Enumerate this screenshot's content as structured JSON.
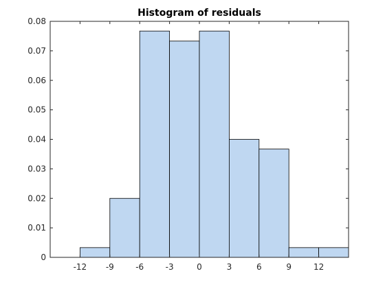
{
  "chart_data": {
    "type": "bar",
    "title": "Histogram of residuals",
    "xlabel": "",
    "ylabel": "",
    "bin_edges": [
      -15,
      -12,
      -9,
      -6,
      -3,
      0,
      3,
      6,
      9,
      12,
      15
    ],
    "values": [
      0,
      0.0033,
      0.02,
      0.0767,
      0.0733,
      0.0767,
      0.04,
      0.0367,
      0.0033,
      0.0033
    ],
    "xlim": [
      -15,
      15
    ],
    "ylim": [
      0,
      0.08
    ],
    "xticks": [
      -12,
      -9,
      -6,
      -3,
      0,
      3,
      6,
      9,
      12
    ],
    "xtick_labels": [
      "-12",
      "-9",
      "-6",
      "-3",
      "0",
      "3",
      "6",
      "9",
      "12"
    ],
    "yticks": [
      0,
      0.01,
      0.02,
      0.03,
      0.04,
      0.05,
      0.06,
      0.07,
      0.08
    ],
    "ytick_labels": [
      "0",
      "0.01",
      "0.02",
      "0.03",
      "0.04",
      "0.05",
      "0.06",
      "0.07",
      "0.08"
    ],
    "grid": false,
    "bar_color": "#bfd7f1",
    "edge_color": "#000000"
  }
}
